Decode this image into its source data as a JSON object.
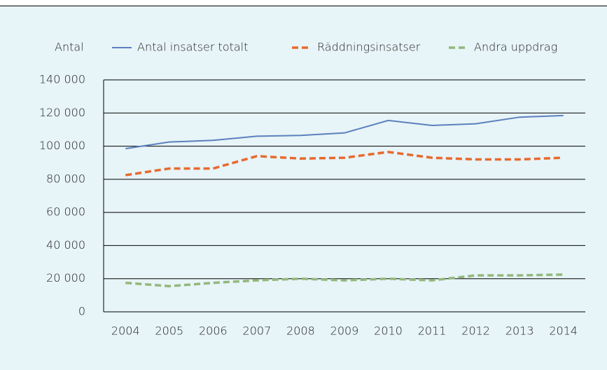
{
  "chart_data": {
    "type": "line",
    "y_label": "Antal",
    "categories": [
      "2004",
      "2005",
      "2006",
      "2007",
      "2008",
      "2009",
      "2010",
      "2011",
      "2012",
      "2013",
      "2014"
    ],
    "series": [
      {
        "name": "Antal insatser totalt",
        "color": "#5b80bd",
        "dash": "solid",
        "values": [
          98500,
          102500,
          103500,
          106000,
          106500,
          108000,
          115500,
          112500,
          113500,
          117500,
          118500
        ]
      },
      {
        "name": "Räddningsinsatser",
        "color": "#e8692e",
        "dash": "dashed",
        "values": [
          82500,
          86500,
          86500,
          94000,
          92500,
          93000,
          96500,
          93000,
          92000,
          92000,
          93000
        ]
      },
      {
        "name": "Andra uppdrag",
        "color": "#93b87a",
        "dash": "dashed",
        "values": [
          17500,
          15500,
          17500,
          19000,
          20000,
          19000,
          20000,
          19000,
          22000,
          22000,
          22500
        ]
      }
    ],
    "ylim": [
      0,
      140000
    ],
    "yticks": [
      0,
      {
        "value": 20000,
        "label": "20 000"
      },
      {
        "value": 40000,
        "label": "40 000"
      },
      {
        "value": 60000,
        "label": "60 000"
      },
      {
        "value": 80000,
        "label": "80 000"
      },
      {
        "value": 100000,
        "label": "100 000"
      },
      {
        "value": 120000,
        "label": "120 000"
      },
      {
        "value": 140000,
        "label": "140 000"
      }
    ],
    "grid": true,
    "legend": "top"
  }
}
